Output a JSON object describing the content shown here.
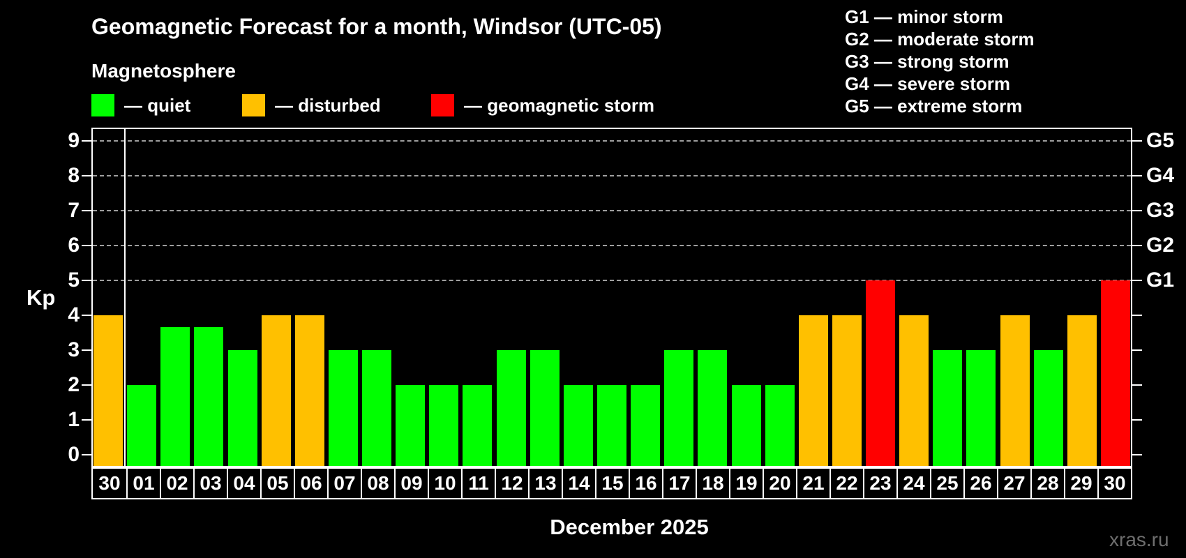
{
  "title": "Geomagnetic Forecast for a month, Windsor (UTC-05)",
  "subtitle": "Magnetosphere",
  "y_axis_label": "Kp",
  "month_label": "December 2025",
  "watermark": "xras.ru",
  "colors": {
    "background": "#000000",
    "quiet": "#00ff00",
    "disturbed": "#ffc000",
    "storm": "#ff0000",
    "grid": "#9e9e9e",
    "axis": "#ffffff",
    "text": "#ffffff",
    "watermark": "#6e6e6e"
  },
  "legend": [
    {
      "key": "quiet",
      "label": "— quiet"
    },
    {
      "key": "disturbed",
      "label": "— disturbed"
    },
    {
      "key": "storm",
      "label": "— geomagnetic storm"
    }
  ],
  "storm_scale": [
    "G1 — minor storm",
    "G2 — moderate storm",
    "G3 — strong storm",
    "G4 — severe storm",
    "G5 — extreme storm"
  ],
  "chart_data": {
    "type": "bar",
    "title": "Geomagnetic Forecast for a month, Windsor (UTC-05)",
    "xlabel": "December 2025",
    "ylabel": "Kp",
    "ylim": [
      0,
      9
    ],
    "y_ticks": [
      0,
      1,
      2,
      3,
      4,
      5,
      6,
      7,
      8,
      9
    ],
    "gridline_levels": [
      5,
      6,
      7,
      8,
      9
    ],
    "right_axis_labels": [
      {
        "label": "G1",
        "kp": 5
      },
      {
        "label": "G2",
        "kp": 6
      },
      {
        "label": "G3",
        "kp": 7
      },
      {
        "label": "G4",
        "kp": 8
      },
      {
        "label": "G5",
        "kp": 9
      }
    ],
    "categories": [
      "30",
      "01",
      "02",
      "03",
      "04",
      "05",
      "06",
      "07",
      "08",
      "09",
      "10",
      "11",
      "12",
      "13",
      "14",
      "15",
      "16",
      "17",
      "18",
      "19",
      "20",
      "21",
      "22",
      "23",
      "24",
      "25",
      "26",
      "27",
      "28",
      "29",
      "30"
    ],
    "values": [
      4,
      2,
      3.67,
      3.67,
      3,
      4,
      4,
      3,
      3,
      2,
      2,
      2,
      3,
      3,
      2,
      2,
      2,
      3,
      3,
      2,
      2,
      4,
      4,
      5,
      4,
      3,
      3,
      4,
      3,
      4,
      5
    ],
    "statuses": [
      "disturbed",
      "quiet",
      "quiet",
      "quiet",
      "quiet",
      "disturbed",
      "disturbed",
      "quiet",
      "quiet",
      "quiet",
      "quiet",
      "quiet",
      "quiet",
      "quiet",
      "quiet",
      "quiet",
      "quiet",
      "quiet",
      "quiet",
      "quiet",
      "quiet",
      "disturbed",
      "disturbed",
      "storm",
      "disturbed",
      "quiet",
      "quiet",
      "disturbed",
      "quiet",
      "disturbed",
      "storm"
    ],
    "separator_after_index": 0,
    "legend_position": "top",
    "grid": true
  }
}
